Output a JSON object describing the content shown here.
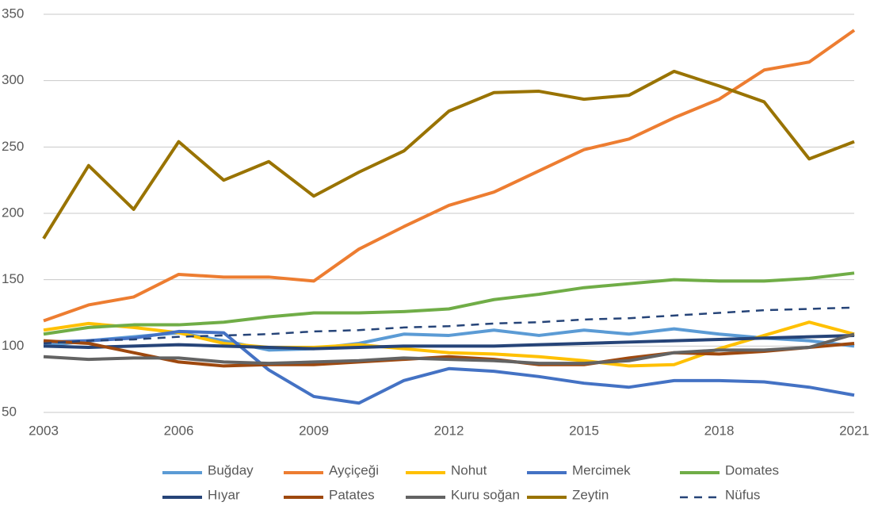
{
  "chart_data": {
    "type": "line",
    "x": [
      2003,
      2004,
      2005,
      2006,
      2007,
      2008,
      2009,
      2010,
      2011,
      2012,
      2013,
      2014,
      2015,
      2016,
      2017,
      2018,
      2019,
      2020,
      2021
    ],
    "xlim": [
      2003,
      2021
    ],
    "xticks": [
      2003,
      2006,
      2009,
      2012,
      2015,
      2018,
      2021
    ],
    "ylim": [
      50,
      350
    ],
    "yticks": [
      50,
      100,
      150,
      200,
      250,
      300,
      350
    ],
    "grid": true,
    "series": [
      {
        "name": "Buğday",
        "color": "#5b9bd5",
        "values": [
          100,
          104,
          107,
          110,
          104,
          97,
          98,
          102,
          109,
          108,
          112,
          108,
          112,
          109,
          113,
          109,
          106,
          104,
          100
        ]
      },
      {
        "name": "Ayçiçeği",
        "color": "#ed7d31",
        "values": [
          119,
          131,
          137,
          154,
          152,
          152,
          149,
          173,
          190,
          206,
          216,
          232,
          248,
          256,
          272,
          286,
          308,
          314,
          338
        ]
      },
      {
        "name": "Nohut",
        "color": "#ffc000",
        "values": [
          112,
          117,
          114,
          110,
          102,
          99,
          99,
          101,
          98,
          95,
          94,
          92,
          89,
          85,
          86,
          98,
          108,
          118,
          109
        ]
      },
      {
        "name": "Mercimek",
        "color": "#4472c4",
        "values": [
          103,
          104,
          106,
          111,
          110,
          82,
          62,
          57,
          74,
          83,
          81,
          77,
          72,
          69,
          74,
          74,
          73,
          69,
          63
        ]
      },
      {
        "name": "Domates",
        "color": "#70ad47",
        "values": [
          109,
          114,
          116,
          116,
          118,
          122,
          125,
          125,
          126,
          128,
          135,
          139,
          144,
          147,
          150,
          149,
          149,
          151,
          155
        ]
      },
      {
        "name": "Hıyar",
        "color": "#264478",
        "values": [
          100,
          99,
          100,
          101,
          100,
          99,
          98,
          99,
          100,
          100,
          100,
          101,
          102,
          103,
          104,
          105,
          106,
          107,
          108
        ]
      },
      {
        "name": "Patates",
        "color": "#9e480e",
        "values": [
          104,
          102,
          95,
          88,
          85,
          86,
          86,
          88,
          90,
          92,
          90,
          86,
          86,
          91,
          95,
          94,
          96,
          99,
          102
        ]
      },
      {
        "name": "Kuru soğan",
        "color": "#636363",
        "values": [
          92,
          90,
          91,
          91,
          88,
          87,
          88,
          89,
          91,
          90,
          89,
          87,
          87,
          89,
          95,
          97,
          97,
          99,
          109
        ]
      },
      {
        "name": "Zeytin",
        "color": "#997300",
        "values": [
          181,
          236,
          203,
          254,
          225,
          239,
          213,
          231,
          247,
          277,
          291,
          292,
          286,
          289,
          307,
          296,
          284,
          241,
          254
        ]
      },
      {
        "name": "Nüfus",
        "color": "#264478",
        "dash": true,
        "values": [
          102,
          104,
          105,
          107,
          108,
          109,
          111,
          112,
          114,
          115,
          117,
          118,
          120,
          121,
          123,
          125,
          127,
          128,
          129
        ]
      }
    ]
  }
}
